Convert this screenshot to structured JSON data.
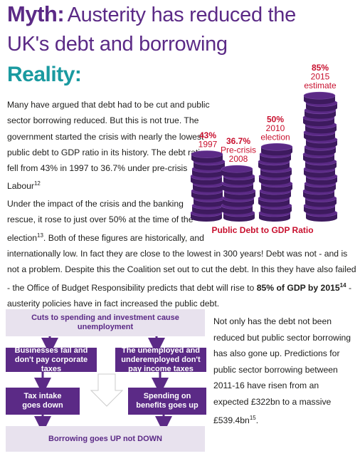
{
  "headline": {
    "myth_word": "Myth:",
    "myth_text": "Austerity has reduced the UK's debt and borrowing"
  },
  "reality_heading": "Reality:",
  "paragraphs": {
    "p1": "Many have argued that debt had to be cut and public sector borrowing reduced. But this is not true. The government started the crisis with nearly the lowest public debt to GDP ratio in its history. The debt ratio fell from 43% in 1997 to 36.7% under pre-crisis Labour",
    "p1_ref": "12",
    "p2_start": "Under the impact of the crisis and the banking rescue, it rose to just over 50% at the time of the election",
    "p2_ref1": "13",
    "p2_mid": ". Both of these figures are historically, and internationally low. In fact they are close to the lowest in 300 years! Debt was not - and is not a problem. Despite this the Coalition set out to cut the debt. In this they have also failed - the Office of Budget Responsibility predicts that debt will rise to ",
    "p2_bold": "85% of GDP by 2015",
    "p2_ref2": "14",
    "p2_end": " - austerity policies have in fact increased the public debt.",
    "p3": "Not only has the debt not been reduced but public sector borrowing has also gone up. Predictions for public sector borrowing between 2011-16 have risen from an expected £322bn to a massive £539.4bn",
    "p3_ref": "15",
    "p3_end": "."
  },
  "chart_data": {
    "type": "bar",
    "title": "Public Debt to GDP Ratio",
    "categories": [
      "1997",
      "Pre-crisis 2008",
      "2010 election",
      "2015 estimate"
    ],
    "values": [
      43,
      36.7,
      50,
      85
    ],
    "value_labels": [
      "43%",
      "36.7%",
      "50%",
      "85%"
    ],
    "label_lines": [
      [
        "1997"
      ],
      [
        "Pre-crisis",
        "2008"
      ],
      [
        "2010",
        "election"
      ],
      [
        "2015",
        "estimate"
      ]
    ],
    "colors": {
      "coin": "#5b2a86",
      "coin_edge": "#3d1a5e",
      "label": "#c8102e"
    }
  },
  "flowchart": {
    "top": "Cuts to spending and investment cause unemployment",
    "left": "Businesses fail and don't pay corporate taxes",
    "right": "The unemployed and underemployed don't pay income taxes",
    "mid_left": "Tax intake goes down",
    "mid_right": "Spending on benefits goes up",
    "bottom": "Borrowing goes UP not DOWN",
    "colors": {
      "light": "#e8e2ee",
      "dark": "#5b2a86",
      "arrow": "#5b2a86"
    }
  }
}
